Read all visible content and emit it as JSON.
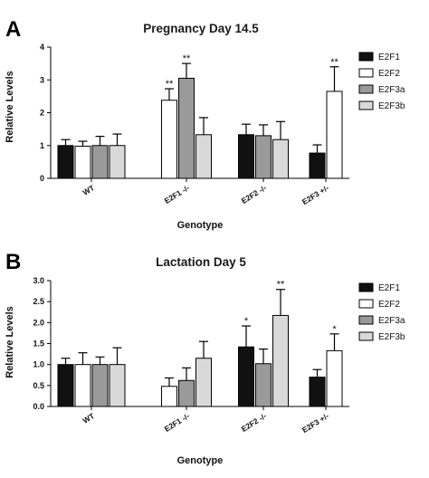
{
  "chart_data": [
    {
      "panel": "A",
      "type": "bar",
      "title": "Pregnancy Day 14.5",
      "xlabel": "Genotype",
      "ylabel": "Relative  Levels",
      "ylim": [
        0,
        4
      ],
      "yticks": [
        "0",
        "1",
        "2",
        "3",
        "4"
      ],
      "categories": [
        "WT",
        "E2F1 -/-",
        "E2F2 -/-",
        "E2F3 +/-"
      ],
      "series": [
        {
          "name": "E2F1",
          "color": "#111111",
          "values": [
            1.0,
            null,
            1.33,
            0.77
          ],
          "errors": [
            0.18,
            null,
            0.32,
            0.25
          ],
          "sig": [
            "",
            "",
            "",
            ""
          ]
        },
        {
          "name": "E2F2",
          "color": "#ffffff",
          "values": [
            0.98,
            2.38,
            null,
            2.65
          ],
          "errors": [
            0.15,
            0.35,
            null,
            0.75
          ],
          "sig": [
            "",
            "**",
            "",
            "**"
          ]
        },
        {
          "name": "E2F3a",
          "color": "#9a9a9a",
          "values": [
            1.0,
            3.05,
            1.3,
            null
          ],
          "errors": [
            0.28,
            0.45,
            0.33,
            null
          ],
          "sig": [
            "",
            "**",
            "",
            ""
          ]
        },
        {
          "name": "E2F3b",
          "color": "#d9d9d9",
          "values": [
            1.0,
            1.33,
            1.18,
            null
          ],
          "errors": [
            0.35,
            0.52,
            0.55,
            null
          ],
          "sig": [
            "",
            "",
            "",
            ""
          ]
        }
      ]
    },
    {
      "panel": "B",
      "type": "bar",
      "title": "Lactation Day 5",
      "xlabel": "Genotype",
      "ylabel": "Relative Levels",
      "ylim": [
        0,
        3.0
      ],
      "yticks": [
        "0.0",
        "0.5",
        "1.0",
        "1.5",
        "2.0",
        "2.5",
        "3.0"
      ],
      "categories": [
        "WT",
        "E2F1 -/-",
        "E2F2 -/-",
        "E2F3 +/-"
      ],
      "series": [
        {
          "name": "E2F1",
          "color": "#111111",
          "values": [
            1.0,
            null,
            1.42,
            0.7
          ],
          "errors": [
            0.15,
            null,
            0.5,
            0.18
          ],
          "sig": [
            "",
            "",
            "*",
            ""
          ]
        },
        {
          "name": "E2F2",
          "color": "#ffffff",
          "values": [
            1.0,
            0.48,
            null,
            1.33
          ],
          "errors": [
            0.28,
            0.2,
            null,
            0.4
          ],
          "sig": [
            "",
            "",
            "",
            "*"
          ]
        },
        {
          "name": "E2F3a",
          "color": "#9a9a9a",
          "values": [
            1.0,
            0.62,
            1.02,
            null
          ],
          "errors": [
            0.18,
            0.3,
            0.35,
            null
          ],
          "sig": [
            "",
            "",
            "",
            ""
          ]
        },
        {
          "name": "E2F3b",
          "color": "#d9d9d9",
          "values": [
            1.0,
            1.15,
            2.17,
            null
          ],
          "errors": [
            0.4,
            0.4,
            0.62,
            null
          ],
          "sig": [
            "",
            "",
            "**",
            ""
          ]
        }
      ]
    }
  ]
}
